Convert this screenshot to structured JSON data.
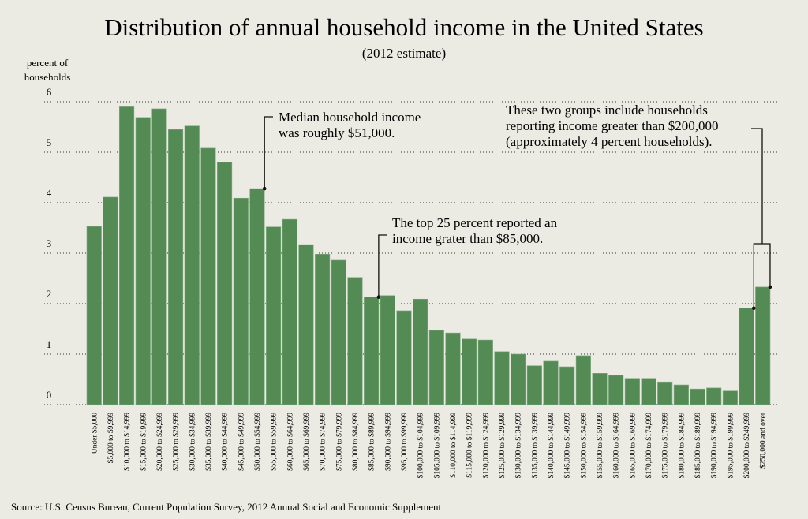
{
  "chart_data": {
    "type": "bar",
    "title": "Distribution of annual household income in the United States",
    "subtitle": "(2012 estimate)",
    "ylabel": [
      "percent of",
      "households"
    ],
    "xlabel": "",
    "ylim": [
      0,
      6
    ],
    "yticks": [
      0,
      1,
      2,
      3,
      4,
      5,
      6
    ],
    "grid": "horizontal dotted",
    "bar_color": "#548b55",
    "background": "#ebebe4",
    "categories": [
      "Under $5,000",
      "$5,000 to $9,999",
      "$10,000 to $14,999",
      "$15,000 to $19,999",
      "$20,000 to $24,999",
      "$25,000 to $29,999",
      "$30,000 to $34,999",
      "$35,000 to $39,999",
      "$40,000 to $44,999",
      "$45,000 to $49,999",
      "$50,000 to $54,999",
      "$55,000 to $59,999",
      "$60,000 to $64,999",
      "$65,000 to $69,999",
      "$70,000 to $74,999",
      "$75,000 to $79,999",
      "$80,000 to $84,999",
      "$85,000 to $89,999",
      "$90,000 to $94,999",
      "$95,000 to $99,999",
      "$100,000 to $104,999",
      "$105,000 to $109,999",
      "$110,000 to $114,999",
      "$115,000 to $119,999",
      "$120,000 to $124,999",
      "$125,000 to $129,999",
      "$130,000 to $134,999",
      "$135,000 to $139,999",
      "$140,000 to $144,999",
      "$145,000 to $149,999",
      "$150,000 to $154,999",
      "$155,000 to $159,999",
      "$160,000 to $164,999",
      "$165,000 to $169,999",
      "$170,000 to $174,999",
      "$175,000 to $179,999",
      "$180,000 to $184,999",
      "$185,000 to $189,999",
      "$190,000 to $194,999",
      "$195,000 to $199,999",
      "$200,000 to $249,999",
      "$250,000 and over"
    ],
    "values": [
      3.53,
      4.11,
      5.9,
      5.69,
      5.86,
      5.45,
      5.52,
      5.08,
      4.8,
      4.09,
      4.28,
      3.52,
      3.67,
      3.17,
      2.98,
      2.86,
      2.52,
      2.13,
      2.16,
      1.86,
      2.09,
      1.47,
      1.42,
      1.3,
      1.28,
      1.05,
      1.0,
      0.77,
      0.86,
      0.75,
      0.97,
      0.62,
      0.58,
      0.52,
      0.52,
      0.45,
      0.39,
      0.31,
      0.33,
      0.27,
      1.91,
      2.33
    ],
    "annotations": [
      {
        "text": [
          "Median household income",
          "was roughly $51,000."
        ],
        "category_index": 10
      },
      {
        "text": [
          "The top 25 percent reported an",
          "income grater than $85,000."
        ],
        "category_index": 17
      },
      {
        "text": [
          "These two groups include households",
          "reporting income greater than $200,000",
          "(approximately 4 percent households)."
        ],
        "category_index": [
          40,
          41
        ]
      }
    ],
    "source": "Source: U.S. Census Bureau, Current Population Survey, 2012 Annual Social and Economic Supplement"
  }
}
